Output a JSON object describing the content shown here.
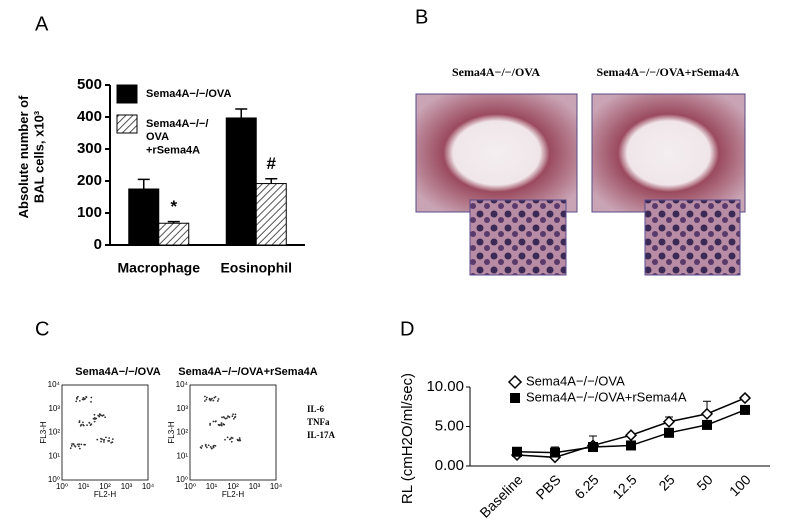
{
  "panel_labels": [
    "A",
    "B",
    "C",
    "D"
  ],
  "chart_data": [
    {
      "type": "bar",
      "y_label": "Absolute number of\nBAL cells, x10³",
      "categories": [
        "Macrophage",
        "Eosinophil"
      ],
      "series": [
        {
          "name": "Sema4A−/−/OVA",
          "color": "#000000",
          "values": [
            175,
            397
          ],
          "errors": [
            30,
            28
          ]
        },
        {
          "name": "Sema4A−/−/\nOVA\n+rSema4A",
          "color": "#555555",
          "pattern": "diagonal",
          "values": [
            68,
            192
          ],
          "errors": [
            5,
            15
          ],
          "annotations": [
            "*",
            "#"
          ]
        }
      ],
      "ylim": [
        0,
        500
      ],
      "yticks": [
        0,
        100,
        200,
        300,
        400,
        500
      ]
    },
    {
      "type": "line",
      "y_label": "RL (cmH2O/ml/sec)",
      "categories": [
        "Baseline",
        "PBS",
        "6.25",
        "12.5",
        "25",
        "50",
        "100"
      ],
      "series": [
        {
          "name": "Sema4A−/−/OVA",
          "color": "#000000",
          "marker": "diamond-open",
          "values": [
            1.4,
            1.1,
            2.6,
            3.9,
            5.6,
            6.6,
            8.6
          ],
          "errors": [
            0.3,
            0.2,
            1.2,
            0.2,
            0.6,
            1.6,
            0.2
          ]
        },
        {
          "name": "Sema4A−/−/OVA+rSema4A",
          "color": "#000000",
          "marker": "square",
          "values": [
            1.8,
            1.7,
            2.4,
            2.6,
            4.2,
            5.2,
            7.1
          ],
          "errors": [
            0.5,
            0.7,
            0.3,
            0.3,
            0.3,
            0.3,
            0.3
          ]
        }
      ],
      "ylim": [
        0,
        10
      ],
      "yticks": [
        {
          "value": 0,
          "label": "0.00"
        },
        {
          "value": 5,
          "label": "5.00"
        },
        {
          "value": 10,
          "label": "10.00"
        }
      ]
    }
  ],
  "panel_b": {
    "titles": [
      "Sema4A−/−/OVA",
      "Sema4A−/−/OVA+rSema4A"
    ]
  },
  "panel_c": {
    "titles": [
      "Sema4A−/−/OVA",
      "Sema4A−/−/OVA+rSema4A"
    ],
    "x_label": "FL2-H",
    "y_label": "FL3-H",
    "tick_labels": [
      "10⁰",
      "10¹",
      "10²",
      "10³",
      "10⁴"
    ],
    "legend": [
      "IL-6",
      "TNFa",
      "IL-17A"
    ]
  }
}
